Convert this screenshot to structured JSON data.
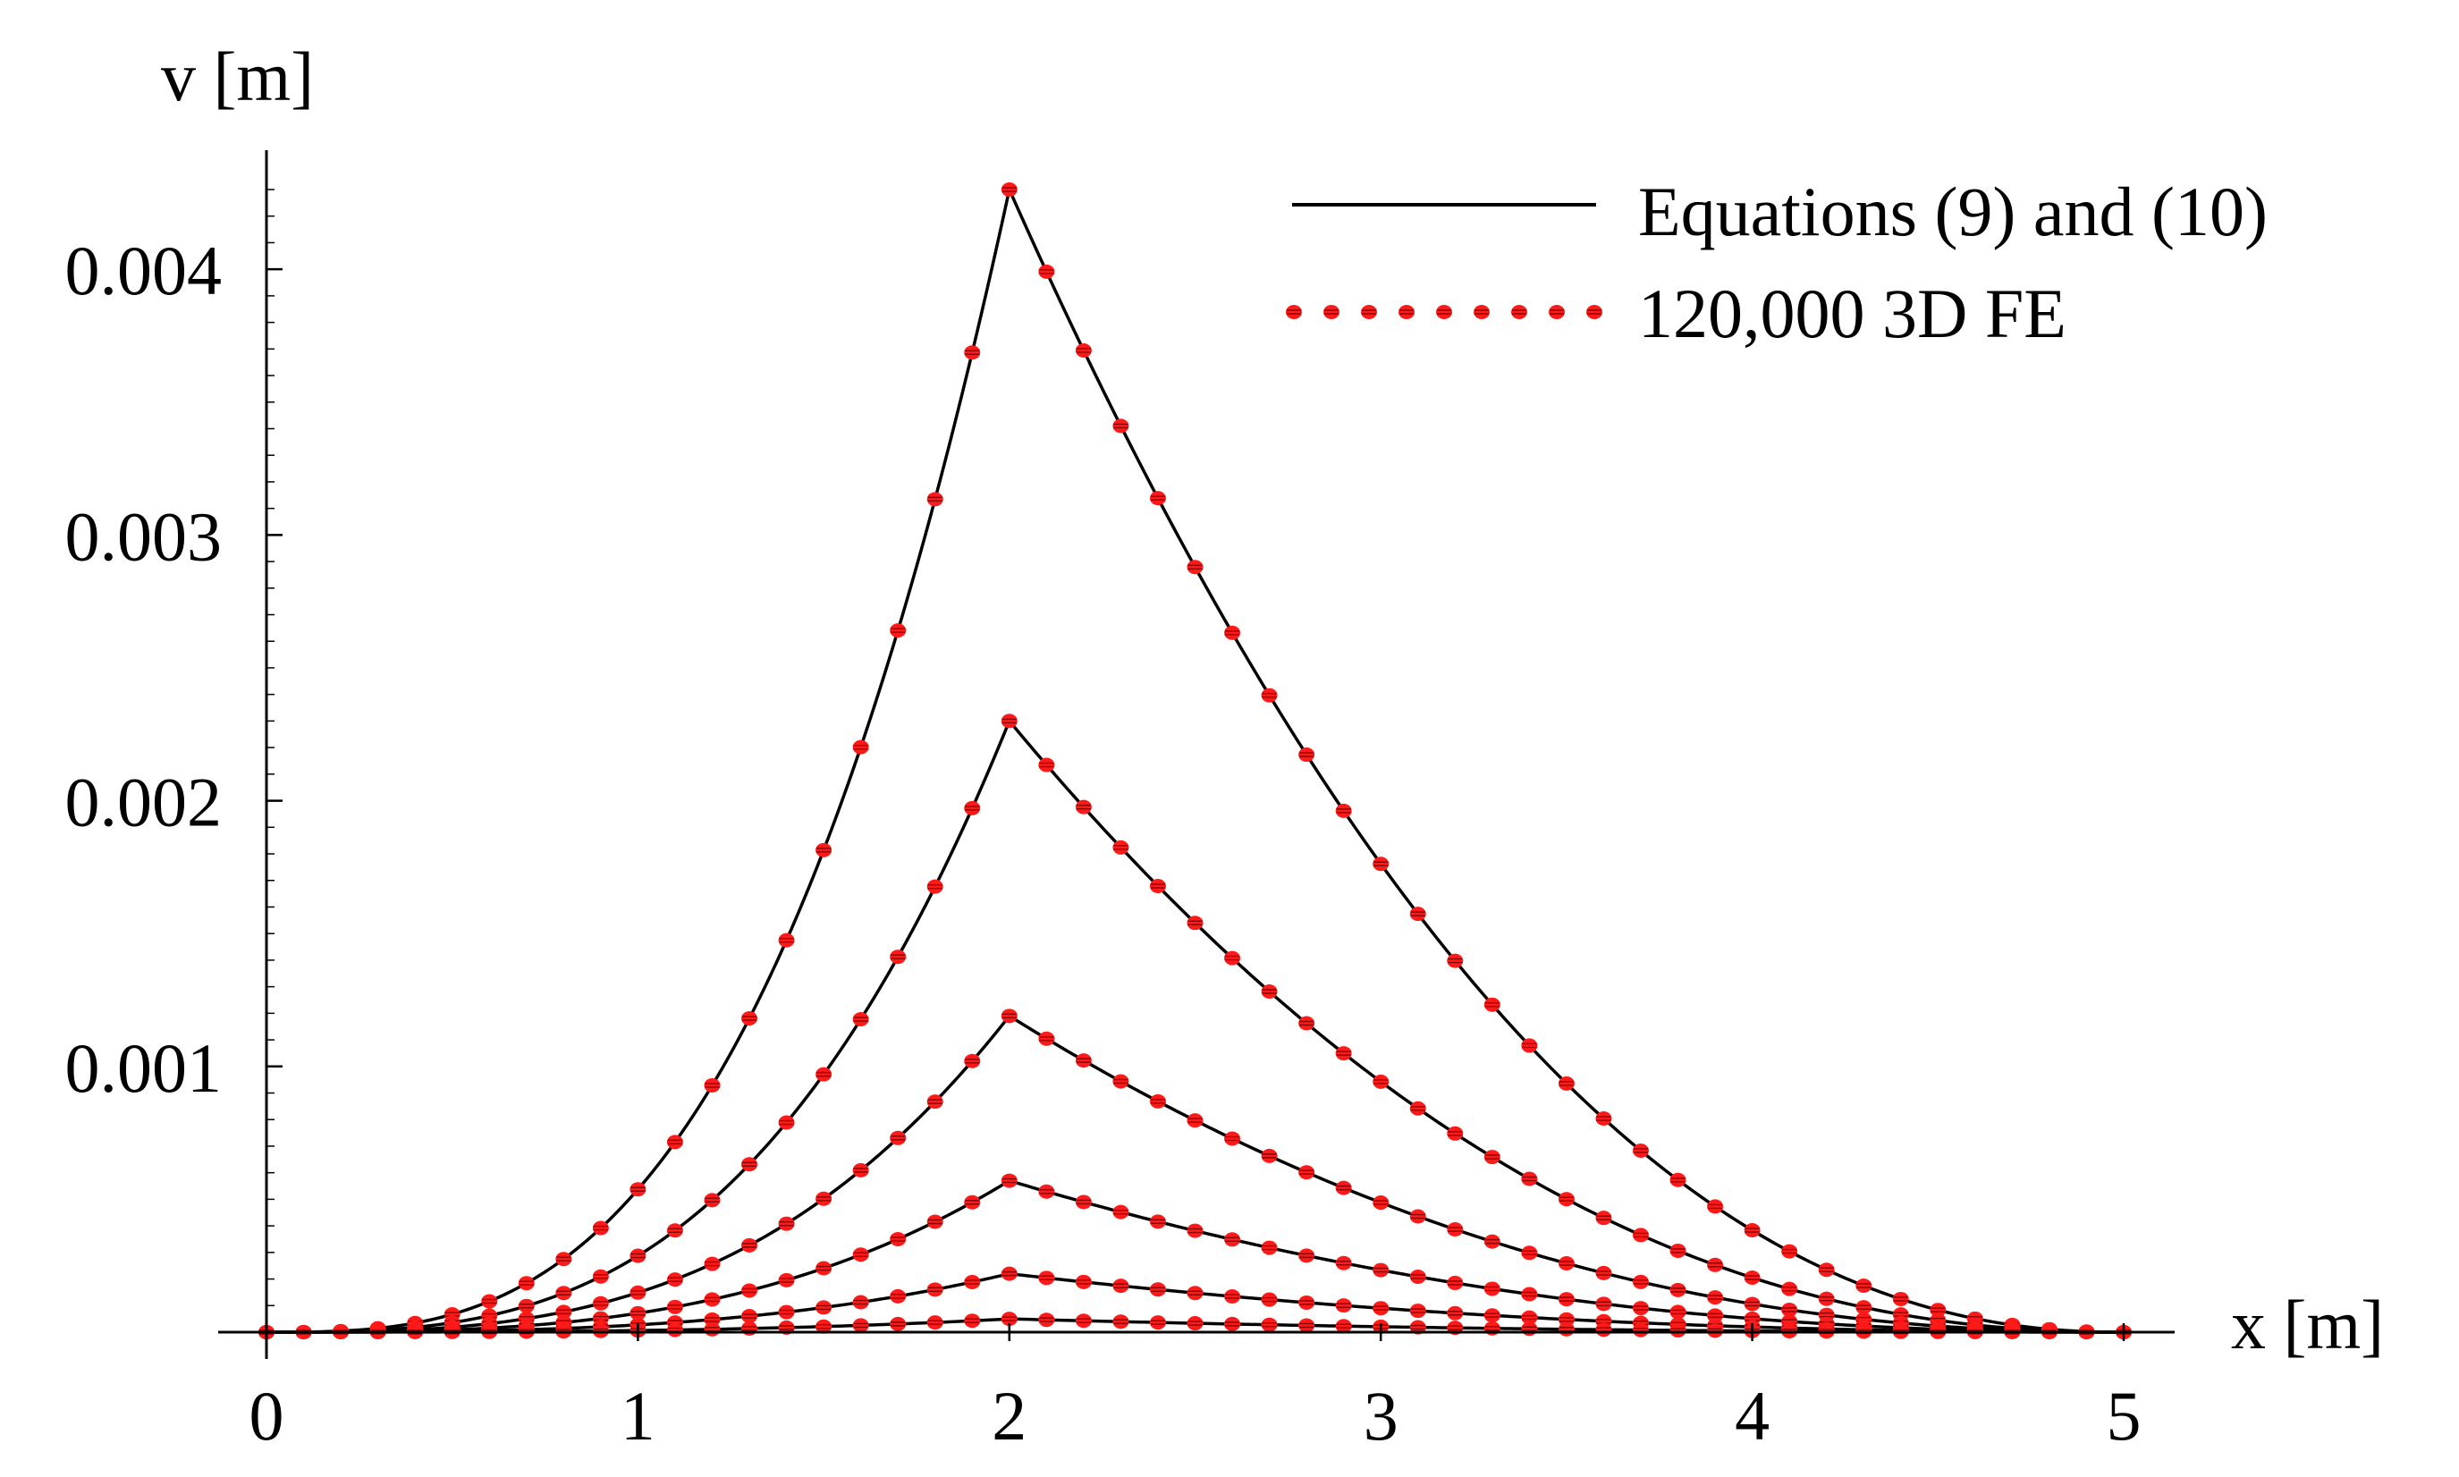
{
  "chart_data": {
    "type": "line",
    "title": "",
    "xlabel": "x [m]",
    "ylabel": "v [m]",
    "xlim": [
      0,
      5
    ],
    "ylim": [
      0,
      0.0043
    ],
    "x_ticks": [
      "0",
      "1",
      "2",
      "3",
      "4",
      "5"
    ],
    "x_tick_values": [
      0,
      1,
      2,
      3,
      4,
      5
    ],
    "y_ticks": [
      "0.001",
      "0.002",
      "0.003",
      "0.004"
    ],
    "y_tick_values": [
      0.001,
      0.002,
      0.003,
      0.004
    ],
    "grid": false,
    "legend_position": "top-right",
    "legend": [
      {
        "label": "Equations (9) and (10)",
        "style": "solid",
        "color": "#000000"
      },
      {
        "label": "120,000 3D FE",
        "style": "dotted",
        "color": "#ff1a1a"
      }
    ],
    "load_position_x": 2,
    "curves": [
      {
        "peak": 0.0043
      },
      {
        "peak": 0.0023
      },
      {
        "peak": 0.00119
      },
      {
        "peak": 0.00057
      },
      {
        "peak": 0.00022
      },
      {
        "peak": 5e-05
      }
    ],
    "series": [
      {
        "name": "Equations (9) and (10)",
        "style": "solid"
      },
      {
        "name": "120,000 3D FE",
        "style": "markers"
      }
    ],
    "colors": {
      "line": "#000000",
      "fe_marker": "#ff1a1a",
      "fe_marker_stripe": "#8a0000"
    }
  }
}
